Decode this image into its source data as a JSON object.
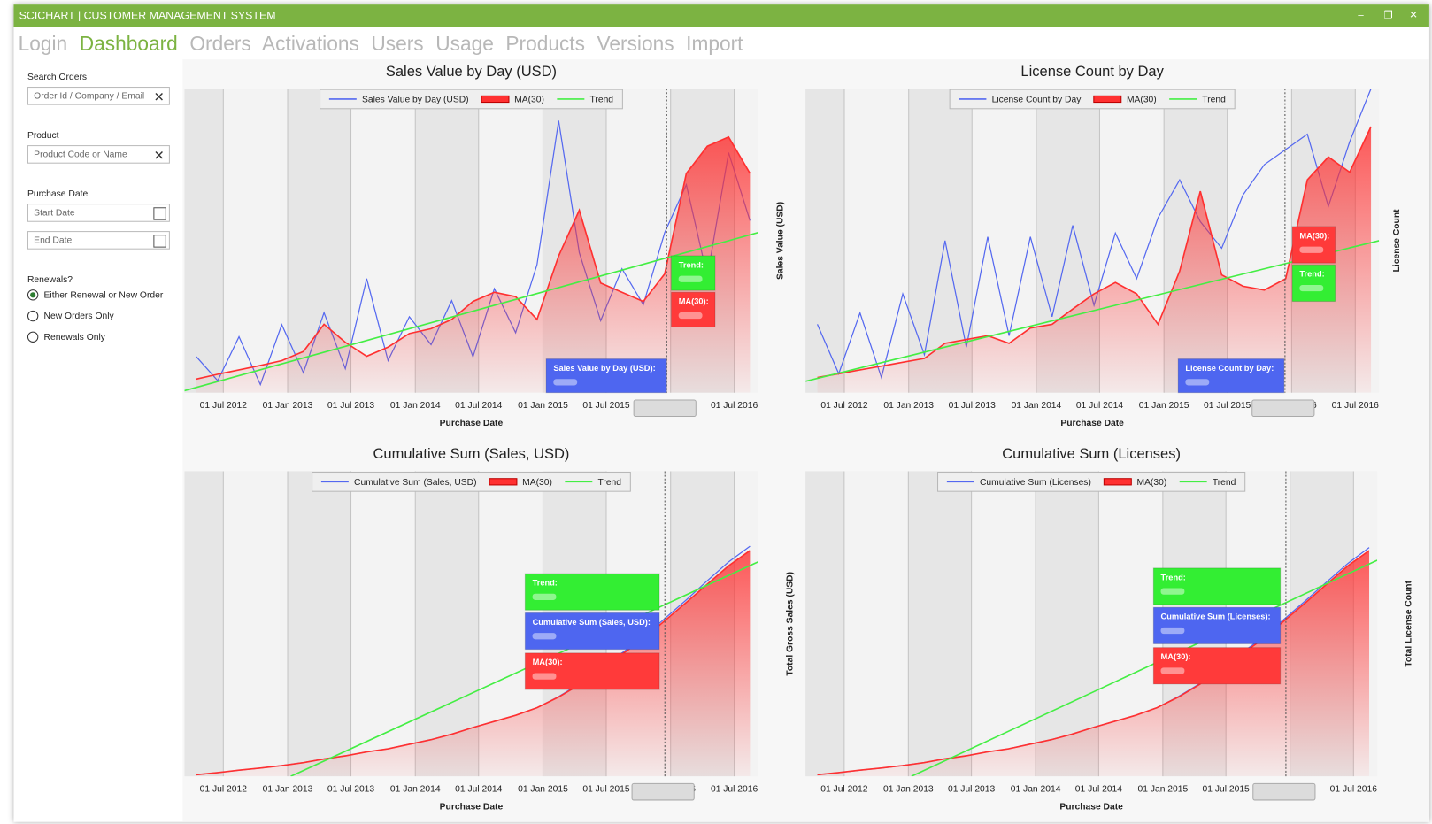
{
  "window_title": "SCICHART | CUSTOMER MANAGEMENT SYSTEM",
  "nav": [
    "Login",
    "Dashboard",
    "Orders",
    "Activations",
    "Users",
    "Usage",
    "Products",
    "Versions",
    "Import"
  ],
  "sidebar": {
    "search_label": "Search Orders",
    "search_placeholder": "Order Id / Company / Email",
    "product_label": "Product",
    "product_placeholder": "Product Code or Name",
    "date_label": "Purchase Date",
    "start_placeholder": "Start Date",
    "end_placeholder": "End Date",
    "renewals_label": "Renewals?",
    "renewal_options": [
      "Either Renewal or New Order",
      "New Orders Only",
      "Renewals Only"
    ]
  },
  "chart_data": [
    {
      "type": "line",
      "title": "Sales Value by Day (USD)",
      "x_label": "Purchase Date",
      "y_label": "Sales Value (USD)",
      "x": [
        "2012-04-15",
        "2012-06-15",
        "2012-08-15",
        "2012-10-15",
        "2012-12-15",
        "2013-02-15",
        "2013-04-15",
        "2013-06-15",
        "2013-08-15",
        "2013-10-15",
        "2013-12-15",
        "2014-02-15",
        "2014-04-15",
        "2014-06-15",
        "2014-08-15",
        "2014-10-15",
        "2014-12-15",
        "2015-02-15",
        "2015-04-15",
        "2015-06-15",
        "2015-08-15",
        "2015-10-15",
        "2015-12-15",
        "2016-02-15",
        "2016-04-15",
        "2016-06-15",
        "2016-08-15"
      ],
      "xlim": [
        "2012-03-12",
        "2016-09-07"
      ],
      "ylim": [
        0,
        7600
      ],
      "xticks": [
        {
          "value": "2012-07-01",
          "label": "01 Jul 2012"
        },
        {
          "value": "2013-01-01",
          "label": "01 Jan 2013"
        },
        {
          "value": "2013-07-01",
          "label": "01 Jul 2013"
        },
        {
          "value": "2014-01-01",
          "label": "01 Jan 2014"
        },
        {
          "value": "2014-07-01",
          "label": "01 Jul 2014"
        },
        {
          "value": "2015-01-01",
          "label": "01 Jan 2015"
        },
        {
          "value": "2015-07-01",
          "label": "01 Jul 2015"
        },
        {
          "value": "2016-01-01",
          "label": "01 Jan 2016"
        },
        {
          "value": "2016-07-01",
          "label": "01 Jul 2016"
        }
      ],
      "series": [
        {
          "name": "Sales Value by Day (USD)",
          "color": "#5468f0",
          "values": [
            900,
            300,
            1400,
            200,
            1700,
            500,
            2000,
            600,
            2850,
            800,
            1900,
            1200,
            2300,
            900,
            2600,
            1500,
            3200,
            6800,
            3500,
            1800,
            3100,
            2200,
            4000,
            5200,
            2900,
            6000,
            4300
          ]
        },
        {
          "name": "MA(30)",
          "color": "#ff3030",
          "fill": true,
          "values": [
            340,
            460,
            570,
            680,
            800,
            1030,
            1710,
            1260,
            910,
            1140,
            1480,
            1600,
            1830,
            2280,
            2510,
            2400,
            1830,
            3420,
            4560,
            2740,
            2510,
            2280,
            2970,
            5480,
            6160,
            6390,
            5480
          ]
        },
        {
          "name": "Trend",
          "color": "#44ee44",
          "x": [
            "2012-03-12",
            "2016-09-07"
          ],
          "values": [
            50,
            4000
          ]
        }
      ],
      "tooltips": [
        {
          "label": "Trend:",
          "color": "#33ee33"
        },
        {
          "label": "MA(30):",
          "color": "#ff3a3a"
        },
        {
          "label": "Sales Value by Day (USD):",
          "color": "#4e66f0"
        }
      ]
    },
    {
      "type": "line",
      "title": "License Count by Day",
      "x_label": "Purchase Date",
      "y_label": "License Count",
      "x": [
        "2012-04-15",
        "2012-06-15",
        "2012-08-15",
        "2012-10-15",
        "2012-12-15",
        "2013-02-15",
        "2013-04-15",
        "2013-06-15",
        "2013-08-15",
        "2013-10-15",
        "2013-12-15",
        "2014-02-15",
        "2014-04-15",
        "2014-06-15",
        "2014-08-15",
        "2014-10-15",
        "2014-12-15",
        "2015-02-15",
        "2015-04-15",
        "2015-06-15",
        "2015-08-15",
        "2015-10-15",
        "2015-12-15",
        "2016-02-15",
        "2016-04-15",
        "2016-06-15",
        "2016-08-15"
      ],
      "xlim": [
        "2012-03-12",
        "2016-09-07"
      ],
      "ylim": [
        0,
        8
      ],
      "xticks": [
        {
          "value": "2012-07-01",
          "label": "01 Jul 2012"
        },
        {
          "value": "2013-01-01",
          "label": "01 Jan 2013"
        },
        {
          "value": "2013-07-01",
          "label": "01 Jul 2013"
        },
        {
          "value": "2014-01-01",
          "label": "01 Jan 2014"
        },
        {
          "value": "2014-07-01",
          "label": "01 Jul 2014"
        },
        {
          "value": "2015-01-01",
          "label": "01 Jan 2015"
        },
        {
          "value": "2015-07-01",
          "label": "01 Jul 2015"
        },
        {
          "value": "2016-01-01",
          "label": "01 Jan 2016"
        },
        {
          "value": "2016-07-01",
          "label": "01 Jul 2016"
        }
      ],
      "series": [
        {
          "name": "License Count by Day",
          "color": "#5468f0",
          "values": [
            1.8,
            0.5,
            2.1,
            0.4,
            2.6,
            1.0,
            4.0,
            1.2,
            4.1,
            1.5,
            4.1,
            2.0,
            4.4,
            2.3,
            4.2,
            3.0,
            4.6,
            5.6,
            4.5,
            3.8,
            5.2,
            6.0,
            6.4,
            6.8,
            4.9,
            6.6,
            8.0
          ]
        },
        {
          "name": "MA(30)",
          "color": "#ff3030",
          "fill": true,
          "values": [
            0.4,
            0.5,
            0.6,
            0.7,
            0.8,
            0.9,
            1.3,
            1.4,
            1.5,
            1.3,
            1.7,
            1.8,
            2.2,
            2.6,
            2.9,
            2.6,
            1.8,
            3.2,
            5.3,
            3.1,
            2.8,
            2.7,
            3.0,
            5.6,
            6.2,
            5.8,
            7.0
          ]
        },
        {
          "name": "Trend",
          "color": "#44ee44",
          "x": [
            "2012-03-12",
            "2016-09-07"
          ],
          "values": [
            0.3,
            4.0
          ]
        }
      ],
      "tooltips": [
        {
          "label": "MA(30):",
          "color": "#ff3a3a"
        },
        {
          "label": "Trend:",
          "color": "#33ee33"
        },
        {
          "label": "License Count by Day:",
          "color": "#4e66f0"
        }
      ]
    },
    {
      "type": "line",
      "title": "Cumulative Sum (Sales, USD)",
      "x_label": "Purchase Date",
      "y_label": "Total Gross Sales (USD)",
      "x": [
        "2012-04-15",
        "2012-06-15",
        "2012-08-15",
        "2012-10-15",
        "2012-12-15",
        "2013-02-15",
        "2013-04-15",
        "2013-06-15",
        "2013-08-15",
        "2013-10-15",
        "2013-12-15",
        "2014-02-15",
        "2014-04-15",
        "2014-06-15",
        "2014-08-15",
        "2014-10-15",
        "2014-12-15",
        "2015-02-15",
        "2015-04-15",
        "2015-06-15",
        "2015-08-15",
        "2015-10-15",
        "2015-12-15",
        "2016-02-15",
        "2016-04-15",
        "2016-06-15",
        "2016-08-15"
      ],
      "xlim": [
        "2012-03-12",
        "2016-09-07"
      ],
      "ylim": [
        0,
        3500000
      ],
      "xticks": [
        {
          "value": "2012-07-01",
          "label": "01 Jul 2012"
        },
        {
          "value": "2013-01-01",
          "label": "01 Jan 2013"
        },
        {
          "value": "2013-07-01",
          "label": "01 Jul 2013"
        },
        {
          "value": "2014-01-01",
          "label": "01 Jan 2014"
        },
        {
          "value": "2014-07-01",
          "label": "01 Jul 2014"
        },
        {
          "value": "2015-01-01",
          "label": "01 Jan 2015"
        },
        {
          "value": "2015-07-01",
          "label": "01 Jul 2015"
        },
        {
          "value": "2016-01-01",
          "label": "01 Jan 2016"
        },
        {
          "value": "2016-07-01",
          "label": "01 Jul 2016"
        }
      ],
      "series": [
        {
          "name": "Cumulative Sum (Sales, USD)",
          "color": "#5468f0",
          "values": [
            17500,
            42000,
            70000,
            94500,
            122500,
            157500,
            199500,
            234500,
            280000,
            315000,
            367500,
            420000,
            483000,
            560000,
            630000,
            700000,
            787500,
            915000,
            1060000,
            1235000,
            1415000,
            1595000,
            1810000,
            2025000,
            2245000,
            2460000,
            2640000
          ]
        },
        {
          "name": "MA(30)",
          "color": "#ff3030",
          "fill": true,
          "values": [
            17500,
            42000,
            70000,
            94500,
            122500,
            157500,
            199500,
            234500,
            280000,
            315000,
            367500,
            420000,
            483000,
            560000,
            630000,
            700000,
            787500,
            910000,
            1050000,
            1225000,
            1400000,
            1575000,
            1785000,
            1995000,
            2205000,
            2415000,
            2590000
          ]
        },
        {
          "name": "Trend",
          "color": "#44ee44",
          "x": [
            "2013-01-10",
            "2016-09-07"
          ],
          "values": [
            0,
            2460000
          ]
        }
      ],
      "tooltips": [
        {
          "label": "Trend:",
          "color": "#33ee33"
        },
        {
          "label": "Cumulative Sum (Sales, USD):",
          "color": "#4e66f0"
        },
        {
          "label": "MA(30):",
          "color": "#ff3a3a"
        }
      ]
    },
    {
      "type": "line",
      "title": "Cumulative Sum (Licenses)",
      "x_label": "Purchase Date",
      "y_label": "Total License Count",
      "x": [
        "2012-04-15",
        "2012-06-15",
        "2012-08-15",
        "2012-10-15",
        "2012-12-15",
        "2013-02-15",
        "2013-04-15",
        "2013-06-15",
        "2013-08-15",
        "2013-10-15",
        "2013-12-15",
        "2014-02-15",
        "2014-04-15",
        "2014-06-15",
        "2014-08-15",
        "2014-10-15",
        "2014-12-15",
        "2015-02-15",
        "2015-04-15",
        "2015-06-15",
        "2015-08-15",
        "2015-10-15",
        "2015-12-15",
        "2016-02-15",
        "2016-04-15",
        "2016-06-15",
        "2016-08-15"
      ],
      "xlim": [
        "2012-03-12",
        "2016-09-07"
      ],
      "ylim": [
        0,
        4800
      ],
      "xticks": [
        {
          "value": "2012-07-01",
          "label": "01 Jul 2012"
        },
        {
          "value": "2013-01-01",
          "label": "01 Jan 2013"
        },
        {
          "value": "2013-07-01",
          "label": "01 Jul 2013"
        },
        {
          "value": "2014-01-01",
          "label": "01 Jan 2014"
        },
        {
          "value": "2014-07-01",
          "label": "01 Jul 2014"
        },
        {
          "value": "2015-01-01",
          "label": "01 Jan 2015"
        },
        {
          "value": "2015-07-01",
          "label": "01 Jul 2015"
        },
        {
          "value": "2016-01-01",
          "label": "01 Jan 2016"
        },
        {
          "value": "2016-07-01",
          "label": "01 Jul 2016"
        }
      ],
      "series": [
        {
          "name": "Cumulative Sum (Licenses)",
          "color": "#5468f0",
          "values": [
            24,
            58,
            96,
            130,
            168,
            216,
            274,
            322,
            384,
            432,
            504,
            576,
            662,
            768,
            864,
            960,
            1080,
            1256,
            1452,
            1695,
            1940,
            2185,
            2475,
            2768,
            3060,
            3350,
            3600
          ]
        },
        {
          "name": "MA(30)",
          "color": "#ff3030",
          "fill": true,
          "values": [
            24,
            58,
            96,
            130,
            168,
            216,
            274,
            322,
            384,
            432,
            504,
            576,
            662,
            768,
            864,
            960,
            1080,
            1248,
            1440,
            1680,
            1920,
            2160,
            2448,
            2736,
            3024,
            3312,
            3552
          ]
        },
        {
          "name": "Trend",
          "color": "#44ee44",
          "x": [
            "2013-01-10",
            "2016-09-07"
          ],
          "values": [
            0,
            3400
          ]
        }
      ],
      "tooltips": [
        {
          "label": "Trend:",
          "color": "#33ee33"
        },
        {
          "label": "Cumulative Sum (Licenses):",
          "color": "#4e66f0"
        },
        {
          "label": "MA(30):",
          "color": "#ff3a3a"
        }
      ]
    }
  ]
}
